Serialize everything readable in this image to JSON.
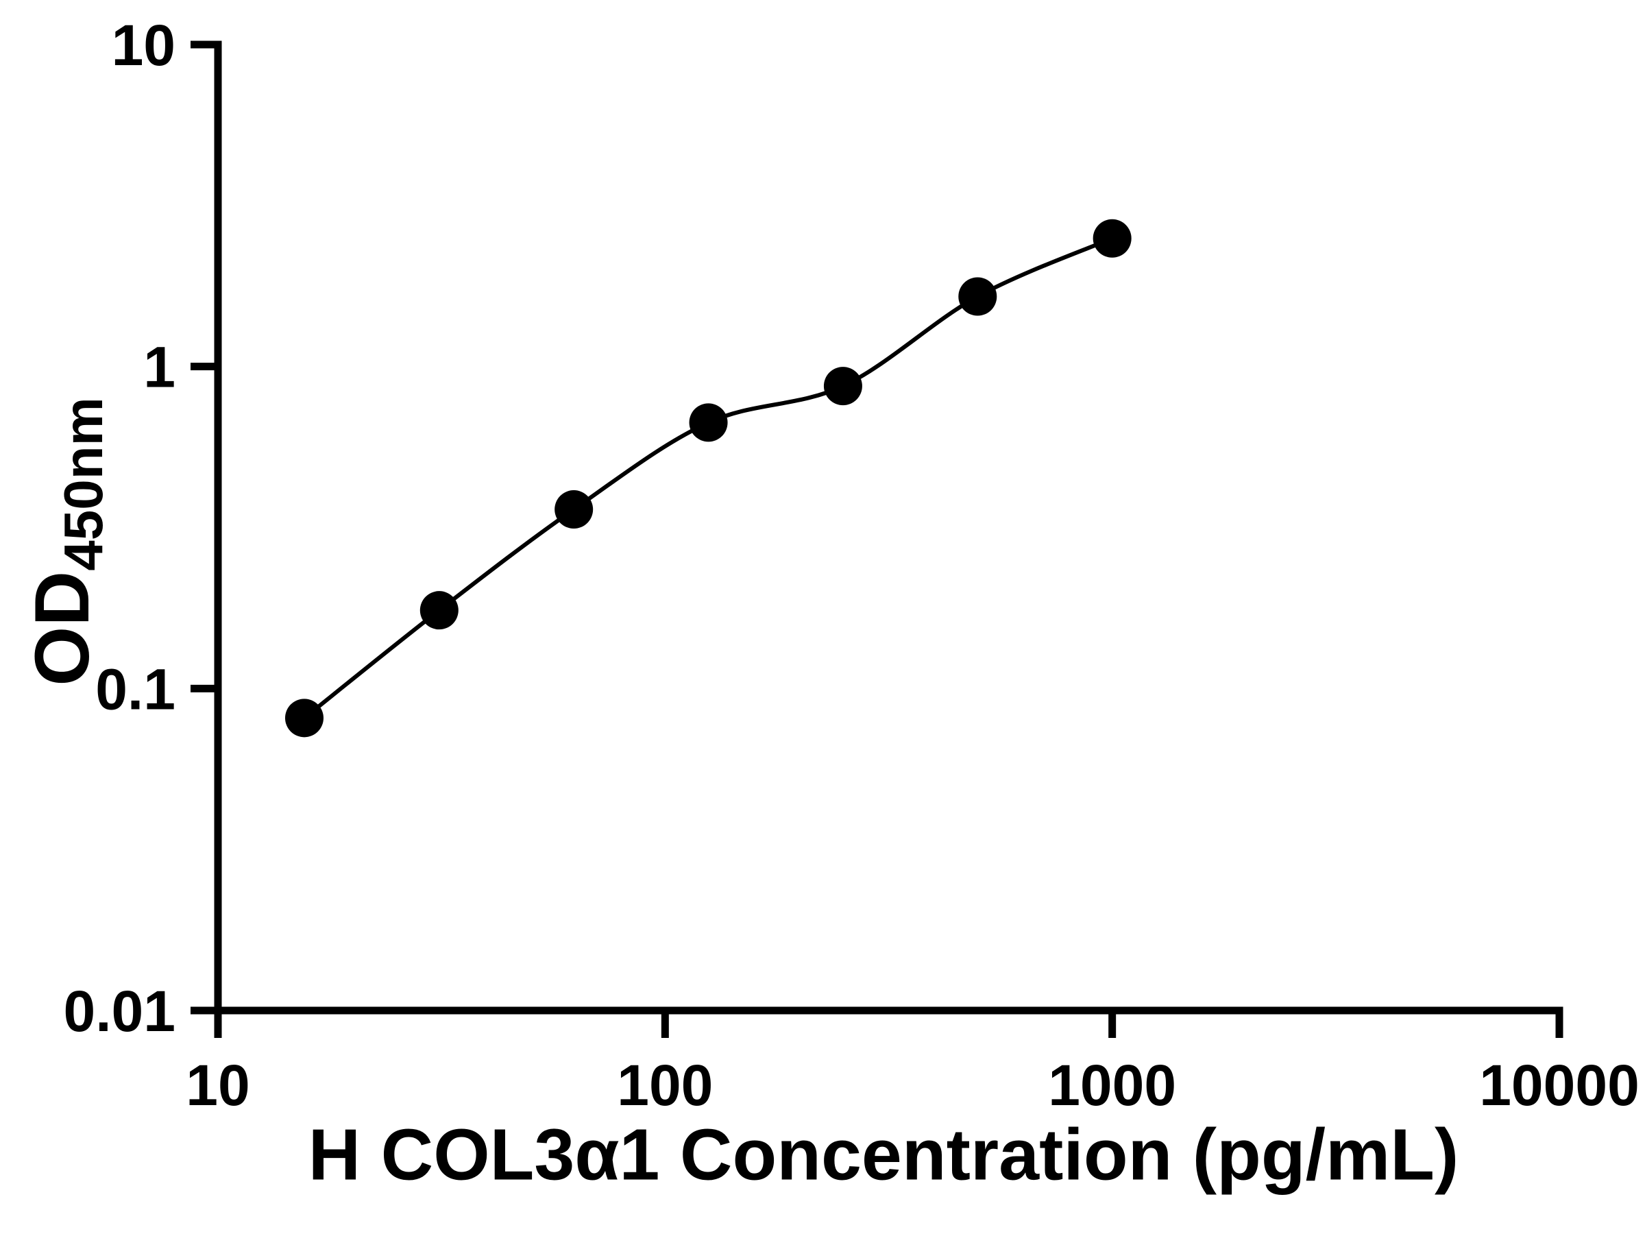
{
  "chart_data": {
    "type": "scatter",
    "x": [
      15.6,
      31.25,
      62.5,
      125,
      250,
      500,
      1000
    ],
    "y": [
      0.081,
      0.175,
      0.36,
      0.67,
      0.87,
      1.65,
      2.5
    ],
    "xlabel": "H COL3α1 Concentration (pg/mL)",
    "ylabel_main": "OD",
    "ylabel_sub": "450nm",
    "x_scale": "log",
    "y_scale": "log",
    "xlim": [
      10,
      10000
    ],
    "ylim": [
      0.01,
      10
    ],
    "x_ticks": [
      {
        "value": 10,
        "label": "10"
      },
      {
        "value": 100,
        "label": "100"
      },
      {
        "value": 1000,
        "label": "1000"
      },
      {
        "value": 10000,
        "label": "10000"
      }
    ],
    "y_ticks": [
      {
        "value": 10,
        "label": "10"
      },
      {
        "value": 1,
        "label": "1"
      },
      {
        "value": 0.1,
        "label": "0.1"
      },
      {
        "value": 0.01,
        "label": "0.01"
      }
    ],
    "grid": false,
    "legend": "none",
    "curve": "smooth fit line through points",
    "marker_color": "#000000",
    "line_color": "#000000",
    "background": "#ffffff"
  }
}
